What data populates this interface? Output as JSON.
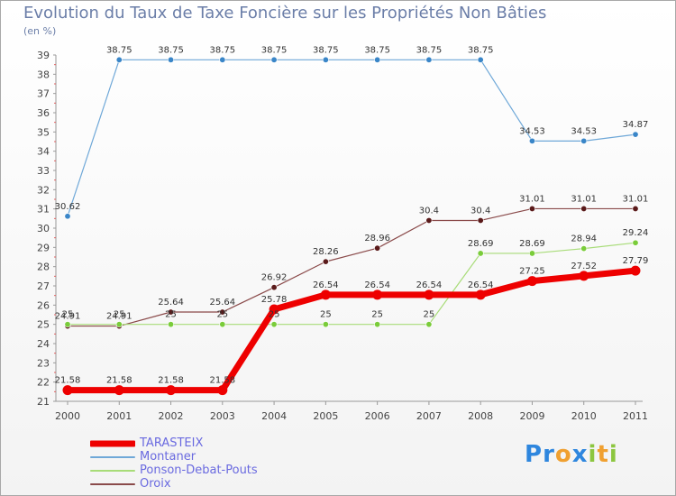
{
  "title": "Evolution du Taux de Taxe Foncière sur les Propriétés Non Bâties",
  "subtitle": "(en %)",
  "logo": {
    "letters": [
      "P",
      "r",
      "o",
      "x",
      "i",
      "t",
      "i"
    ],
    "colors": [
      "#2e86de",
      "#2e86de",
      "#f0a030",
      "#2e86de",
      "#8cc63f",
      "#f0a030",
      "#8cc63f"
    ]
  },
  "chart_data": {
    "type": "line",
    "title": "Evolution du Taux de Taxe Foncière sur les Propriétés Non Bâties",
    "ylabel": "(en %)",
    "x": [
      "2000",
      "2001",
      "2002",
      "2003",
      "2004",
      "2005",
      "2006",
      "2007",
      "2008",
      "2009",
      "2010",
      "2011"
    ],
    "ylim": [
      21,
      39
    ],
    "yticks": [
      21,
      22,
      23,
      24,
      25,
      26,
      27,
      28,
      29,
      30,
      31,
      32,
      33,
      34,
      35,
      36,
      37,
      38,
      39
    ],
    "series": [
      {
        "name": "Montaner",
        "color": "#6fa8d8",
        "marker": "#3a86c8",
        "width": 1.2,
        "values": [
          30.62,
          38.75,
          38.75,
          38.75,
          38.75,
          38.75,
          38.75,
          38.75,
          38.75,
          34.53,
          34.53,
          34.87
        ],
        "labels": [
          "30.62",
          "38.75",
          "38.75",
          "38.75",
          "38.75",
          "38.75",
          "38.75",
          "38.75",
          "38.75",
          "34.53",
          "34.53",
          "34.87"
        ]
      },
      {
        "name": "Oroix",
        "color": "#8a4a4a",
        "marker": "#5a1a1a",
        "width": 1.2,
        "values": [
          24.91,
          24.91,
          25.64,
          25.64,
          26.92,
          28.26,
          28.96,
          30.4,
          30.4,
          31.01,
          31.01,
          31.01
        ],
        "labels": [
          "24.91",
          "24.91",
          "25.64",
          "25.64",
          "26.92",
          "28.26",
          "28.96",
          "30.4",
          "30.4",
          "31.01",
          "31.01",
          "31.01"
        ]
      },
      {
        "name": "Ponson-Debat-Pouts",
        "color": "#a8dc78",
        "marker": "#7acc3a",
        "width": 1.2,
        "values": [
          25,
          25,
          25,
          25,
          25,
          25,
          25,
          25,
          28.69,
          28.69,
          28.94,
          29.24
        ],
        "labels": [
          "25",
          "25",
          "25",
          "25",
          "25",
          "25",
          "25",
          "25",
          "28.69",
          "28.69",
          "28.94",
          "29.24"
        ]
      },
      {
        "name": "TARASTEIX",
        "color": "#ee0000",
        "marker": "#ee0000",
        "width": 7,
        "values": [
          21.58,
          21.58,
          21.58,
          21.58,
          25.78,
          26.54,
          26.54,
          26.54,
          26.54,
          27.25,
          27.52,
          27.79
        ],
        "labels": [
          "21.58",
          "21.58",
          "21.58",
          "21.58",
          "25.78",
          "26.54",
          "26.54",
          "26.54",
          "26.54",
          "27.25",
          "27.52",
          "27.79"
        ]
      }
    ],
    "legend": [
      "TARASTEIX",
      "Montaner",
      "Ponson-Debat-Pouts",
      "Oroix"
    ],
    "legend_position": "bottom-left"
  }
}
